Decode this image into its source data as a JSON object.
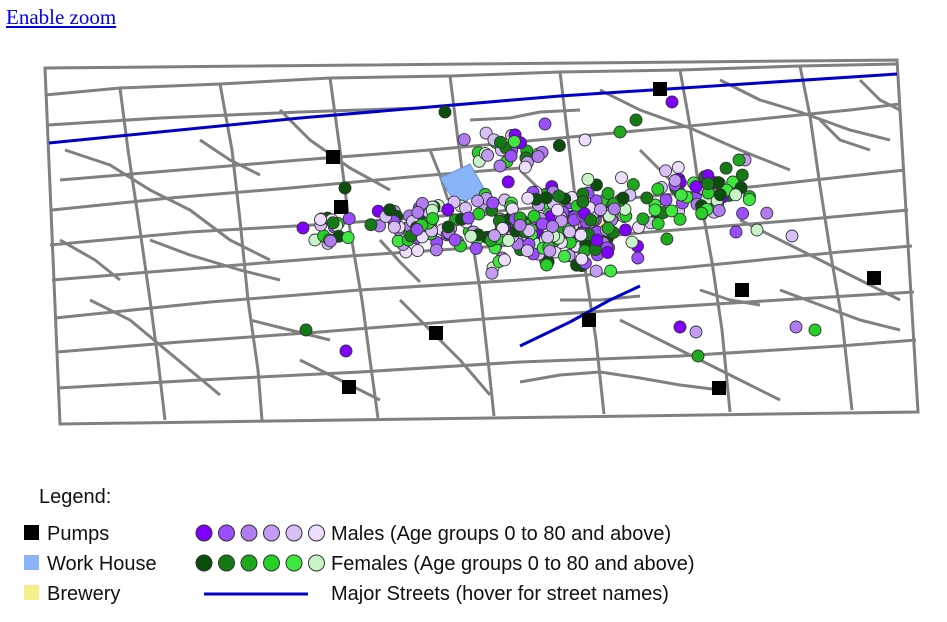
{
  "page": {
    "zoom_link": "Enable zoom"
  },
  "legend": {
    "title": "Legend:",
    "pumps_label": "Pumps",
    "workhouse_label": "Work House",
    "brewery_label": "Brewery",
    "males_label": "Males (Age groups 0 to 80 and above)",
    "females_label": "Females (Age groups 0 to 80 and above)",
    "streets_label": "Major Streets (hover for street names)"
  },
  "colors": {
    "street": "#808080",
    "major_street": "#0000cd",
    "pump": "#000000",
    "workhouse": "#8ab4f8",
    "brewery": "#f5f08a",
    "male_age_groups": [
      "#7f00ff",
      "#9b4dff",
      "#b07cf0",
      "#c49cf3",
      "#d8bff6",
      "#ecdefc"
    ],
    "female_age_groups": [
      "#0b4d0b",
      "#157a15",
      "#1ea81e",
      "#26d026",
      "#3ee83e",
      "#c8f5c8"
    ]
  }
}
